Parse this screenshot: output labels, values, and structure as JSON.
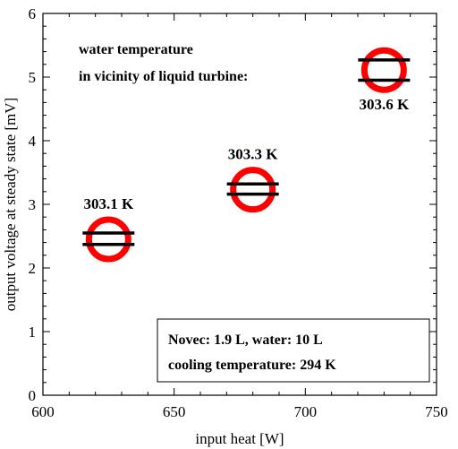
{
  "chart_data": {
    "type": "scatter",
    "title": "",
    "xlabel": "input heat [W]",
    "ylabel": "output voltage at steady state [mV]",
    "xlim": [
      600,
      750
    ],
    "ylim": [
      0,
      6
    ],
    "xticks": [
      600,
      650,
      700,
      750
    ],
    "yticks": [
      0,
      1,
      2,
      3,
      4,
      5,
      6
    ],
    "grid": false,
    "series": [
      {
        "points": [
          {
            "x": 625,
            "y": 2.45,
            "y_upper": 2.55,
            "y_lower": 2.37,
            "label": "303.1 K"
          },
          {
            "x": 680,
            "y": 3.23,
            "y_upper": 3.32,
            "y_lower": 3.16,
            "label": "303.3 K"
          },
          {
            "x": 730,
            "y": 5.11,
            "y_upper": 5.27,
            "y_lower": 4.95,
            "label": "303.6 K"
          }
        ],
        "marker_color": "#ff0000",
        "bar_color": "#000000"
      }
    ],
    "annotations": {
      "top_left": [
        "water temperature",
        "in vicinity of liquid turbine:"
      ],
      "box": [
        "Novec: 1.9 L, water: 10 L",
        "cooling temperature: 294 K"
      ]
    }
  }
}
